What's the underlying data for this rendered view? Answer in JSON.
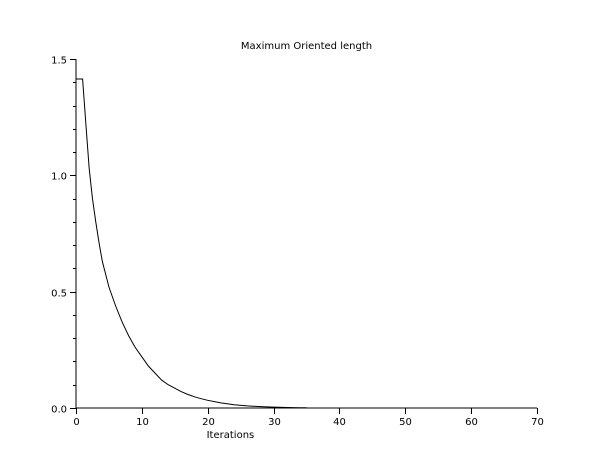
{
  "chart_data": {
    "type": "line",
    "title": "Maximum Oriented length",
    "xlabel": "Iterations",
    "ylabel": "",
    "xlim": [
      0,
      70
    ],
    "ylim": [
      0,
      1.5
    ],
    "grid": false,
    "x_ticks": [
      0,
      10,
      20,
      30,
      40,
      50,
      60,
      70
    ],
    "x_tick_labels": [
      "0",
      "10",
      "20",
      "30",
      "40",
      "50",
      "60",
      "70"
    ],
    "y_ticks": [
      0,
      0.5,
      1.0,
      1.5
    ],
    "y_tick_labels": [
      "0.0",
      "0.5",
      "1.0",
      "1.5"
    ],
    "y_minor_step": 0.1,
    "series": [
      {
        "x": [
          0,
          1,
          1.5,
          2,
          2.5,
          3,
          3.5,
          4,
          5,
          6,
          7,
          8,
          9,
          10,
          11,
          12,
          13,
          14,
          15,
          16,
          17,
          18,
          19,
          20,
          22,
          24,
          26,
          28,
          30,
          32,
          34,
          35
        ],
        "y": [
          1.414,
          1.414,
          1.22,
          1.03,
          0.9,
          0.8,
          0.71,
          0.63,
          0.52,
          0.44,
          0.37,
          0.31,
          0.26,
          0.22,
          0.18,
          0.15,
          0.12,
          0.1,
          0.085,
          0.07,
          0.058,
          0.048,
          0.04,
          0.033,
          0.022,
          0.014,
          0.009,
          0.006,
          0.004,
          0.002,
          0.001,
          0.001
        ]
      }
    ]
  }
}
